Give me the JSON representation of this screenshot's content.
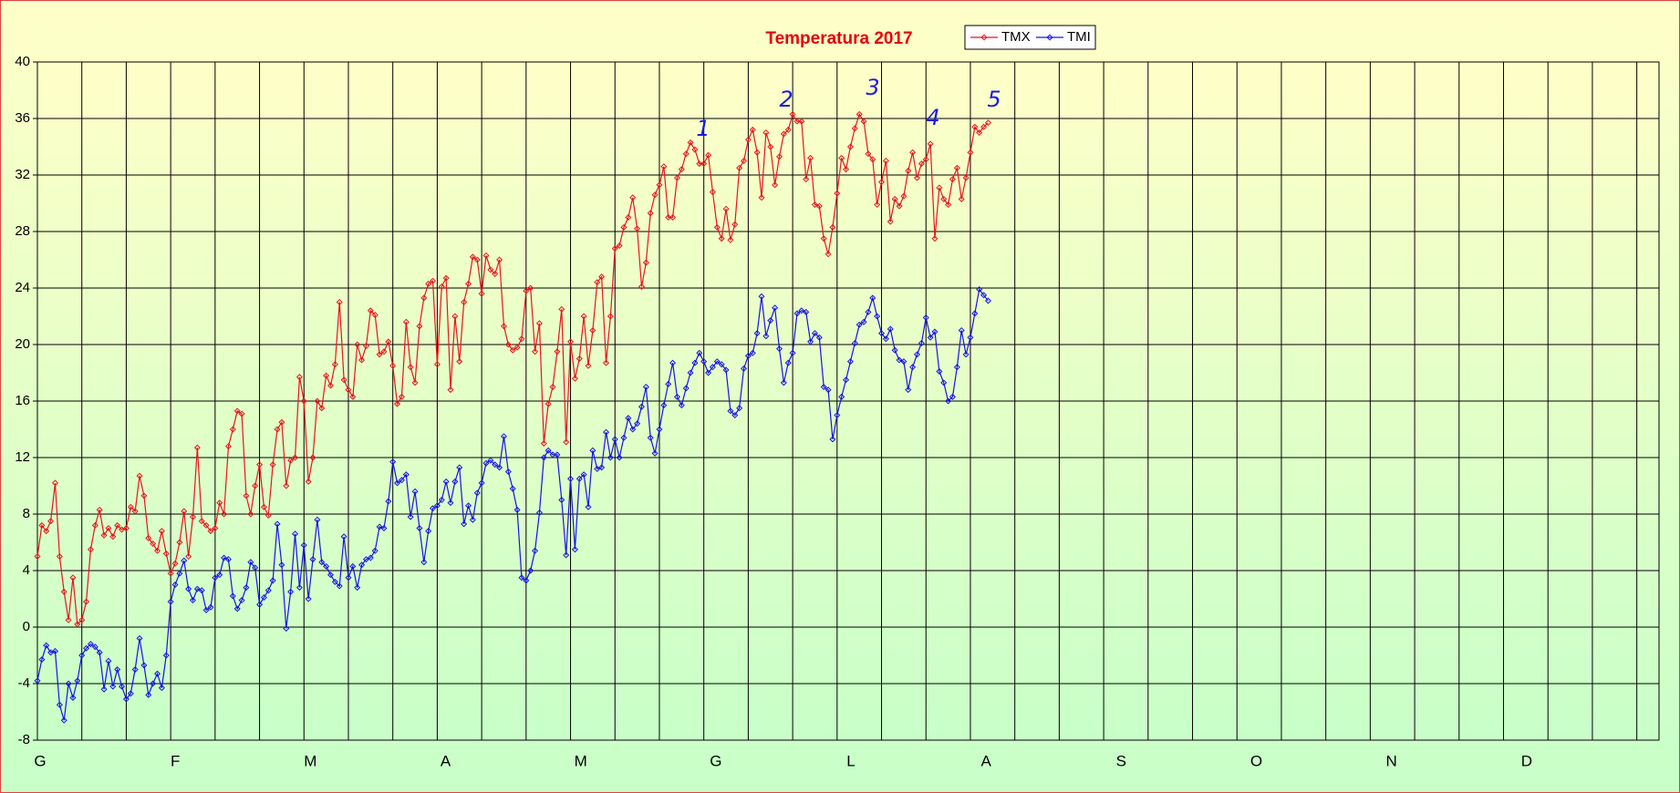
{
  "chart_data": {
    "type": "line",
    "title": "Temperatura 2017",
    "x_labels": [
      "G",
      "F",
      "M",
      "A",
      "M",
      "G",
      "L",
      "A",
      "S",
      "O",
      "N",
      "D"
    ],
    "ylim": [
      -8,
      40
    ],
    "yticks": [
      -8,
      -4,
      0,
      4,
      8,
      12,
      16,
      20,
      24,
      28,
      32,
      36,
      40
    ],
    "grid": true,
    "legend": "top",
    "annotations": [
      "1",
      "2",
      "3",
      "4",
      "5"
    ],
    "series": [
      {
        "name": "TMX",
        "color": "#e8141c",
        "values": [
          5,
          7.2,
          6.8,
          7.5,
          10.2,
          5,
          2.5,
          0.5,
          3.5,
          0.2,
          0.5,
          1.8,
          5.5,
          7.2,
          8.3,
          6.5,
          7,
          6.4,
          7.2,
          6.9,
          7,
          8.5,
          8.2,
          10.7,
          9.3,
          6.3,
          5.9,
          5.4,
          6.8,
          5.2,
          3.8,
          4.5,
          6,
          8.2,
          5,
          7.8,
          12.7,
          7.5,
          7.2,
          6.8,
          7,
          8.8,
          8,
          12.8,
          14,
          15.3,
          15.1,
          9.3,
          8,
          10,
          11.5,
          8.5,
          7.9,
          11.5,
          14,
          14.5,
          10,
          11.8,
          12,
          17.7,
          16,
          10.3,
          12,
          16,
          15.5,
          17.8,
          17.1,
          18.6,
          23,
          17.5,
          16.8,
          16.3,
          20,
          18.9,
          19.9,
          22.4,
          22.1,
          19.3,
          19.5,
          20.2,
          18.5,
          15.8,
          16.3,
          21.6,
          18.4,
          17.3,
          21.3,
          23.3,
          24.3,
          24.5,
          18.6,
          24.1,
          24.7,
          16.8,
          22,
          18.8,
          23,
          24.3,
          26.2,
          26,
          23.6,
          26.3,
          25.3,
          25,
          26,
          21.3,
          20,
          19.6,
          19.8,
          20.4,
          23.8,
          24,
          19.5,
          21.5,
          13,
          15.8,
          17,
          19.5,
          22.5,
          13.1,
          20.2,
          17.6,
          19,
          22,
          18.5,
          21,
          24.4,
          24.8,
          18.7,
          22,
          26.8,
          27,
          28.3,
          29,
          30.4,
          28.2,
          24.1,
          25.8,
          29.3,
          30.6,
          31.3,
          32.6,
          29,
          29,
          31.8,
          32.4,
          33.5,
          34.3,
          33.8,
          32.8,
          32.8,
          33.4,
          30.8,
          28.3,
          27.5,
          29.6,
          27.4,
          28.5,
          32.5,
          33,
          34.5,
          35.2,
          33.6,
          30.4,
          35,
          34,
          31.3,
          33.3,
          34.9,
          35.2,
          36.3,
          35.8,
          35.8,
          31.7,
          33.2,
          29.9,
          29.8,
          27.5,
          26.4,
          28.3,
          30.7,
          33.2,
          32.4,
          34,
          35.3,
          36.3,
          35.8,
          33.5,
          33.1,
          29.9,
          31.5,
          33,
          28.7,
          30.3,
          29.8,
          30.5,
          32.3,
          33.6,
          31.8,
          32.8,
          33.1,
          34.2,
          27.5,
          31.1,
          30.3,
          29.9,
          31.7,
          32.5,
          30.3,
          31.8,
          33.6,
          35.4,
          35,
          35.4,
          35.7
        ]
      },
      {
        "name": "TMI",
        "color": "#1414e6",
        "values": [
          -3.8,
          -2.3,
          -1.3,
          -1.8,
          -1.7,
          -5.5,
          -6.6,
          -4,
          -5,
          -3.8,
          -2,
          -1.5,
          -1.2,
          -1.4,
          -1.8,
          -4.4,
          -2.4,
          -4.2,
          -3,
          -4.2,
          -5.1,
          -4.7,
          -3,
          -0.8,
          -2.7,
          -4.8,
          -4,
          -3.3,
          -4.3,
          -2,
          1.8,
          3,
          3.8,
          4.7,
          2.7,
          1.9,
          2.7,
          2.6,
          1.2,
          1.4,
          3.5,
          3.7,
          4.9,
          4.8,
          2.2,
          1.3,
          1.9,
          2.8,
          4.6,
          4.2,
          1.6,
          2.1,
          2.6,
          3.3,
          7.3,
          4.4,
          -0.1,
          2.5,
          6.6,
          2.8,
          5.8,
          2,
          4.8,
          7.6,
          4.6,
          4.3,
          3.7,
          3.2,
          2.9,
          6.4,
          3.5,
          4.3,
          2.8,
          4.4,
          4.8,
          4.9,
          5.4,
          7.1,
          7,
          8.9,
          11.7,
          10.2,
          10.4,
          10.8,
          7.8,
          9.6,
          7,
          4.6,
          6.8,
          8.4,
          8.6,
          9,
          10.3,
          8.8,
          10.3,
          11.3,
          7.3,
          8.6,
          7.6,
          9.5,
          10.2,
          11.6,
          11.8,
          11.5,
          11.3,
          13.5,
          11,
          9.8,
          8.3,
          3.5,
          3.3,
          4,
          5.4,
          8.1,
          12,
          12.5,
          12.2,
          12.2,
          9,
          5.1,
          10.5,
          5.5,
          10.5,
          10.8,
          8.5,
          12.5,
          11.2,
          11.3,
          13.8,
          12,
          13.3,
          12,
          13.4,
          14.8,
          14,
          14.4,
          15.6,
          17,
          13.4,
          12.3,
          14,
          15.7,
          17.2,
          18.7,
          16.3,
          15.7,
          16.9,
          18,
          18.7,
          19.4,
          18.8,
          18,
          18.4,
          18.8,
          18.6,
          18.2,
          15.3,
          15,
          15.5,
          18.3,
          19.2,
          19.4,
          20.8,
          23.4,
          20.6,
          21.7,
          22.6,
          19.7,
          17.3,
          18.7,
          19.4,
          22.2,
          22.4,
          22.3,
          20.2,
          20.8,
          20.5,
          17,
          16.8,
          13.3,
          15,
          16.3,
          17.5,
          18.8,
          20.1,
          21.4,
          21.6,
          22.3,
          23.3,
          22,
          20.8,
          20.4,
          21.1,
          19.6,
          18.9,
          18.8,
          16.8,
          18.4,
          19.3,
          20.1,
          21.9,
          20.5,
          20.9,
          18.1,
          17.3,
          16,
          16.3,
          18.4,
          21,
          19.3,
          20.5,
          22.2,
          23.9,
          23.5,
          23.1
        ]
      }
    ]
  }
}
